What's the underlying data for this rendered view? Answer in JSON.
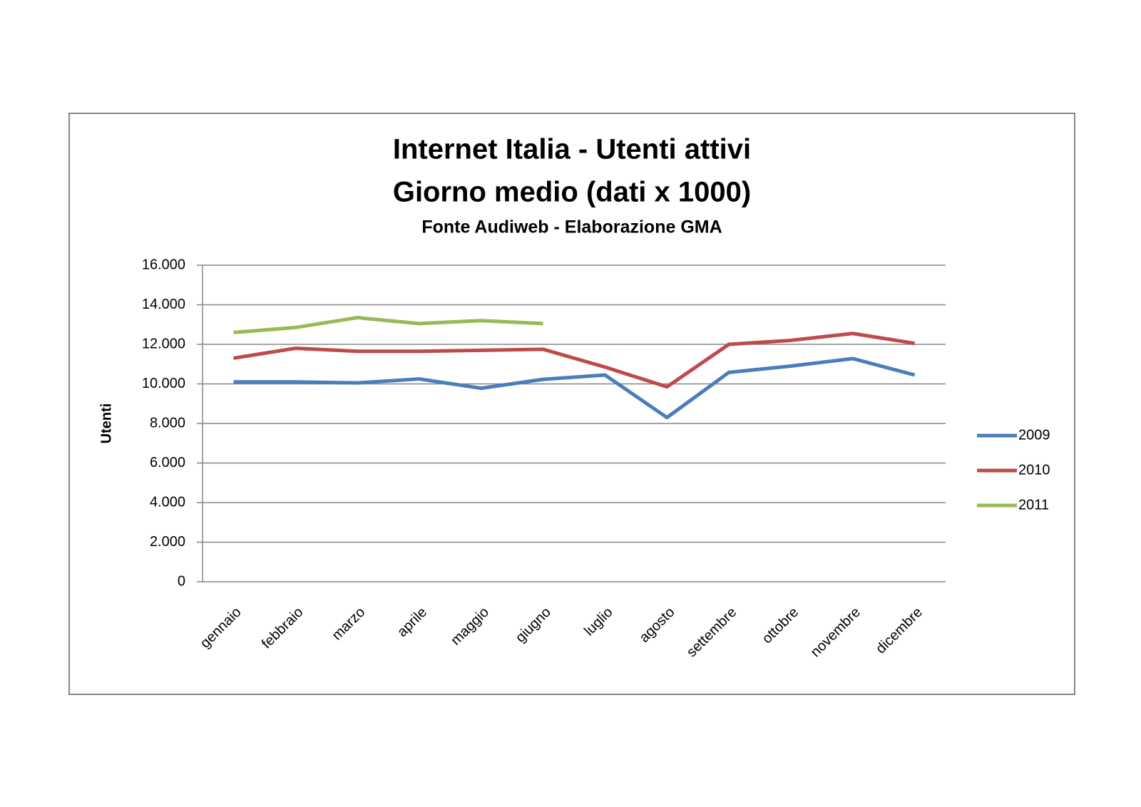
{
  "chart_data": {
    "type": "line",
    "title": [
      "Internet Italia - Utenti attivi",
      "Giorno medio (dati x 1000)"
    ],
    "subtitle": "Fonte Audiweb  - Elaborazione GMA",
    "y_label": "Utenti",
    "categories": [
      "gennaio",
      "febbraio",
      "marzo",
      "aprile",
      "maggio",
      "giugno",
      "luglio",
      "agosto",
      "settembre",
      "ottobre",
      "novembre",
      "dicembre"
    ],
    "series": [
      {
        "name": "2009",
        "color": "#4a7ebb",
        "values": [
          10100,
          10100,
          10050,
          10250,
          9780,
          10230,
          10450,
          8300,
          10580,
          10900,
          11280,
          10450
        ]
      },
      {
        "name": "2010",
        "color": "#be4b48",
        "values": [
          11300,
          11800,
          11650,
          11650,
          11700,
          11750,
          10850,
          9850,
          12000,
          12200,
          12550,
          12050
        ]
      },
      {
        "name": "2011",
        "color": "#98b954",
        "values": [
          12600,
          12850,
          13350,
          13050,
          13200,
          13050,
          null,
          null,
          null,
          null,
          null,
          null
        ]
      }
    ],
    "ylim": [
      0,
      16000
    ],
    "yticks": [
      0,
      {
        "value": 2000,
        "label": "2.000"
      },
      {
        "value": 4000,
        "label": "4.000"
      },
      {
        "value": 6000,
        "label": "6.000"
      },
      {
        "value": 8000,
        "label": "8.000"
      },
      {
        "value": 10000,
        "label": "10.000"
      },
      {
        "value": 12000,
        "label": "12.000"
      },
      {
        "value": 14000,
        "label": "14.000"
      },
      {
        "value": 16000,
        "label": "16.000"
      }
    ],
    "grid": true,
    "legend": "right"
  }
}
